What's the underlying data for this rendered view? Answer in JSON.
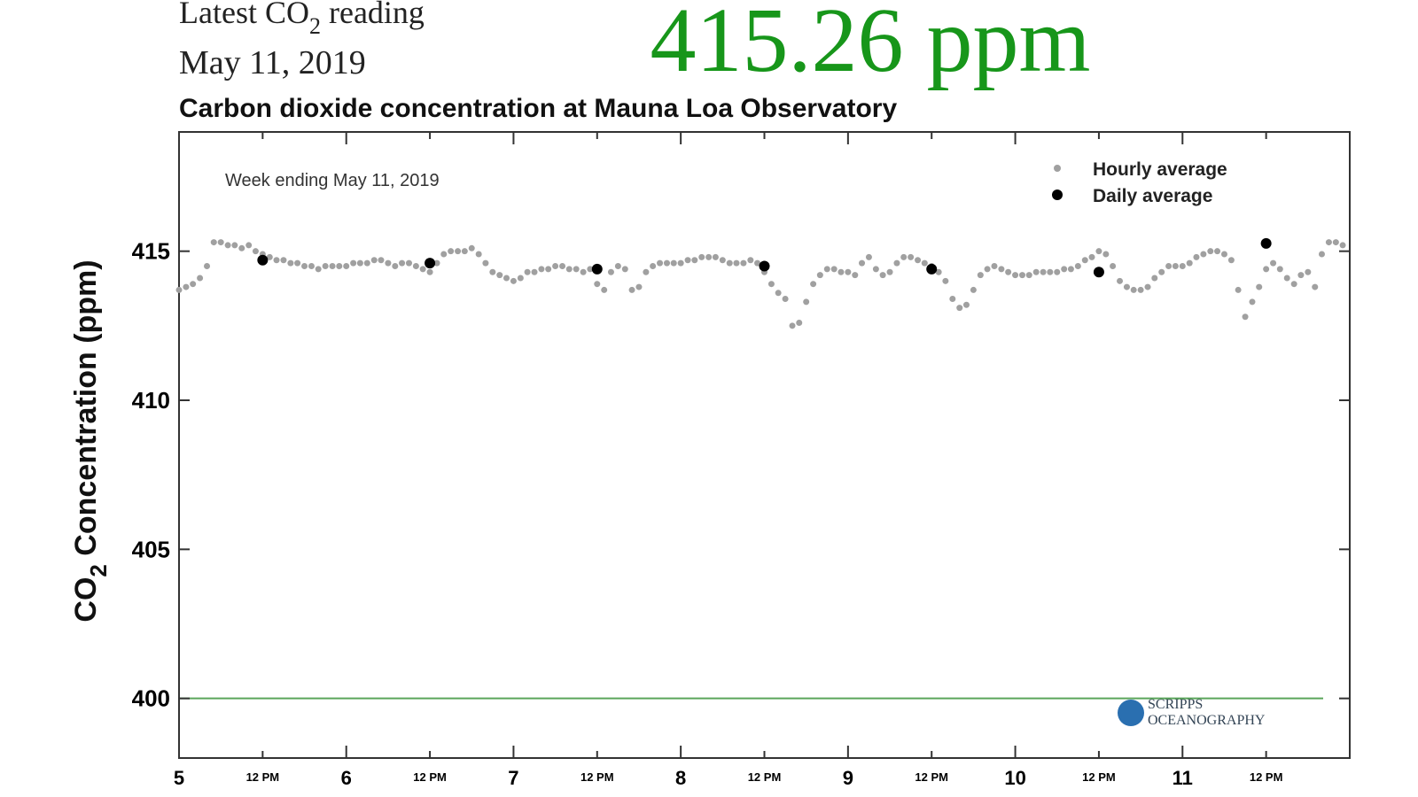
{
  "header": {
    "reading_label": [
      "Latest CO",
      "2",
      " reading"
    ],
    "date": "May 11, 2019",
    "latest_value": "415.26 ppm"
  },
  "chart_data": {
    "type": "scatter",
    "title": "Carbon dioxide concentration at Mauna Loa Observatory",
    "annotation": "Week ending May 11, 2019",
    "y_label": [
      "CO",
      "2",
      " Concentration (ppm)"
    ],
    "logo": [
      "SCRIPPS",
      "OCEANOGRAPHY"
    ],
    "xlim": [
      5,
      12
    ],
    "ylim": [
      398,
      419
    ],
    "xticks": [
      5,
      6,
      7,
      8,
      9,
      10,
      11,
      {
        "value": 5.5,
        "label": "12 PM"
      },
      {
        "value": 6.5,
        "label": "12 PM"
      },
      {
        "value": 7.5,
        "label": "12 PM"
      },
      {
        "value": 8.5,
        "label": "12 PM"
      },
      {
        "value": 9.5,
        "label": "12 PM"
      },
      {
        "value": 10.5,
        "label": "12 PM"
      },
      {
        "value": 11.5,
        "label": "12 PM"
      }
    ],
    "yticks": [
      400,
      405,
      410,
      415
    ],
    "reference_line": {
      "value": 400,
      "color": "#5aa55a"
    },
    "legend": "upper right",
    "series": [
      {
        "name": "Hourly average",
        "color": "#a0a0a0",
        "x": [
          5,
          5.042,
          5.083,
          5.125,
          5.167,
          5.208,
          5.25,
          5.292,
          5.333,
          5.375,
          5.417,
          5.458,
          5.5,
          5.542,
          5.583,
          5.625,
          5.667,
          5.708,
          5.75,
          5.792,
          5.833,
          5.875,
          5.917,
          5.958,
          6,
          6.042,
          6.083,
          6.125,
          6.167,
          6.208,
          6.25,
          6.292,
          6.333,
          6.375,
          6.417,
          6.458,
          6.5,
          6.542,
          6.583,
          6.625,
          6.667,
          6.708,
          6.75,
          6.792,
          6.833,
          6.875,
          6.917,
          6.958,
          7,
          7.042,
          7.083,
          7.125,
          7.167,
          7.208,
          7.25,
          7.292,
          7.333,
          7.375,
          7.417,
          7.458,
          7.5,
          7.542,
          7.583,
          7.625,
          7.667,
          7.708,
          7.75,
          7.792,
          7.833,
          7.875,
          7.917,
          7.958,
          8,
          8.042,
          8.083,
          8.125,
          8.167,
          8.208,
          8.25,
          8.292,
          8.333,
          8.375,
          8.417,
          8.458,
          8.5,
          8.542,
          8.583,
          8.625,
          8.667,
          8.708,
          8.75,
          8.792,
          8.833,
          8.875,
          8.917,
          8.958,
          9,
          9.042,
          9.083,
          9.125,
          9.167,
          9.208,
          9.25,
          9.292,
          9.333,
          9.375,
          9.417,
          9.458,
          9.5,
          9.542,
          9.583,
          9.625,
          9.667,
          9.708,
          9.75,
          9.792,
          9.833,
          9.875,
          9.917,
          9.958,
          10,
          10.042,
          10.083,
          10.125,
          10.167,
          10.208,
          10.25,
          10.292,
          10.333,
          10.375,
          10.417,
          10.458,
          10.5,
          10.542,
          10.583,
          10.625,
          10.667,
          10.708,
          10.75,
          10.792,
          10.833,
          10.875,
          10.917,
          10.958,
          11,
          11.042,
          11.083,
          11.125,
          11.167,
          11.208,
          11.25,
          11.292,
          11.333,
          11.375,
          11.417,
          11.458,
          11.5,
          11.542,
          11.583,
          11.625,
          11.667,
          11.708,
          11.75,
          11.792,
          11.833,
          11.875,
          11.917,
          11.958
        ],
        "values": [
          413.7,
          413.8,
          413.9,
          414.1,
          414.5,
          415.3,
          415.3,
          415.2,
          415.2,
          415.1,
          415.2,
          415.0,
          414.9,
          414.8,
          414.7,
          414.7,
          414.6,
          414.6,
          414.5,
          414.5,
          414.4,
          414.5,
          414.5,
          414.5,
          414.5,
          414.6,
          414.6,
          414.6,
          414.7,
          414.7,
          414.6,
          414.5,
          414.6,
          414.6,
          414.5,
          414.4,
          414.3,
          414.6,
          414.9,
          415.0,
          415.0,
          415.0,
          415.1,
          414.9,
          414.6,
          414.3,
          414.2,
          414.1,
          414.0,
          414.1,
          414.3,
          414.3,
          414.4,
          414.4,
          414.5,
          414.5,
          414.4,
          414.4,
          414.3,
          414.4,
          413.9,
          413.7,
          414.3,
          414.5,
          414.4,
          413.7,
          413.8,
          414.3,
          414.5,
          414.6,
          414.6,
          414.6,
          414.6,
          414.7,
          414.7,
          414.8,
          414.8,
          414.8,
          414.7,
          414.6,
          414.6,
          414.6,
          414.7,
          414.6,
          414.3,
          413.9,
          413.6,
          413.4,
          412.5,
          412.6,
          413.3,
          413.9,
          414.2,
          414.4,
          414.4,
          414.3,
          414.3,
          414.2,
          414.6,
          414.8,
          414.4,
          414.2,
          414.3,
          414.6,
          414.8,
          414.8,
          414.7,
          414.6,
          414.5,
          414.3,
          414.0,
          413.4,
          413.1,
          413.2,
          413.7,
          414.2,
          414.4,
          414.5,
          414.4,
          414.3,
          414.2,
          414.2,
          414.2,
          414.3,
          414.3,
          414.3,
          414.3,
          414.4,
          414.4,
          414.5,
          414.7,
          414.8,
          415.0,
          414.9,
          414.5,
          414.0,
          413.8,
          413.7,
          413.7,
          413.8,
          414.1,
          414.3,
          414.5,
          414.5,
          414.5,
          414.6,
          414.8,
          414.9,
          415.0,
          415.0,
          414.9,
          414.7,
          413.7,
          412.8,
          413.3,
          413.8,
          414.4,
          414.6,
          414.4,
          414.1,
          413.9,
          414.2,
          414.3,
          413.8,
          414.9,
          415.3,
          415.3,
          415.2
        ]
      },
      {
        "name": "Daily average",
        "color": "#000000",
        "x": [
          5.5,
          6.5,
          7.5,
          8.5,
          9.5,
          10.5,
          11.5
        ],
        "values": [
          414.7,
          414.6,
          414.4,
          414.5,
          414.4,
          414.3,
          415.26
        ]
      }
    ]
  }
}
